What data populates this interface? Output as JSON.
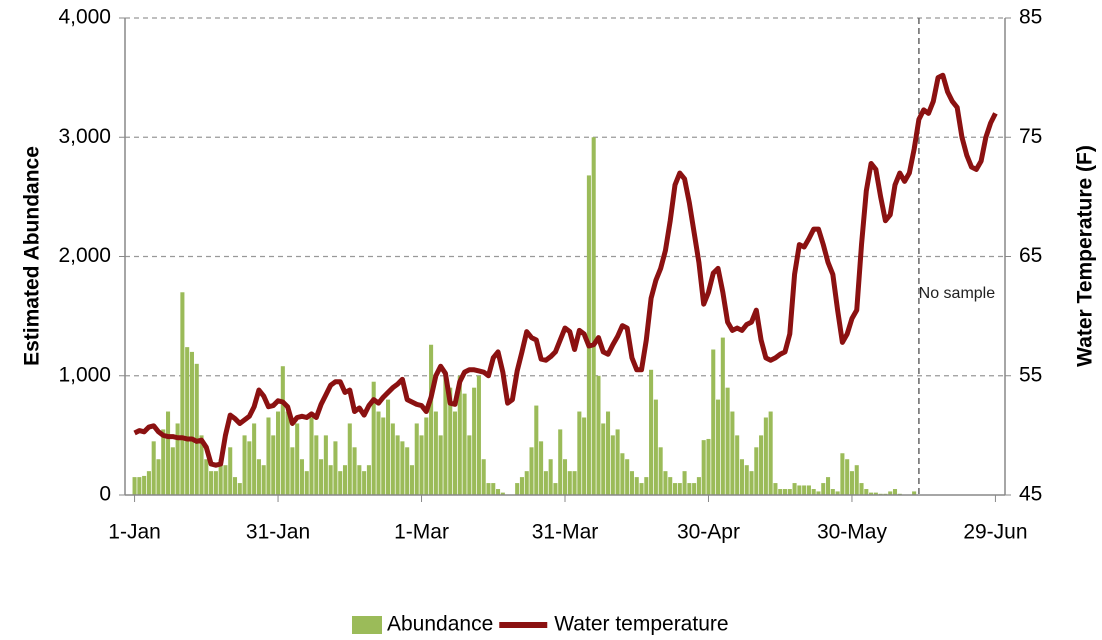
{
  "chart_data": {
    "type": "bar+line",
    "x": [
      0,
      1,
      2,
      3,
      4,
      5,
      6,
      7,
      8,
      9,
      10,
      11,
      12,
      13,
      14,
      15,
      16,
      17,
      18,
      19,
      20,
      21,
      22,
      23,
      24,
      25,
      26,
      27,
      28,
      29,
      30,
      31,
      32,
      33,
      34,
      35,
      36,
      37,
      38,
      39,
      40,
      41,
      42,
      43,
      44,
      45,
      46,
      47,
      48,
      49,
      50,
      51,
      52,
      53,
      54,
      55,
      56,
      57,
      58,
      59,
      60,
      61,
      62,
      63,
      64,
      65,
      66,
      67,
      68,
      69,
      70,
      71,
      72,
      73,
      74,
      75,
      76,
      77,
      78,
      79,
      80,
      81,
      82,
      83,
      84,
      85,
      86,
      87,
      88,
      89,
      90,
      91,
      92,
      93,
      94,
      95,
      96,
      97,
      98,
      99,
      100,
      101,
      102,
      103,
      104,
      105,
      106,
      107,
      108,
      109,
      110,
      111,
      112,
      113,
      114,
      115,
      116,
      117,
      118,
      119,
      120,
      121,
      122,
      123,
      124,
      125,
      126,
      127,
      128,
      129,
      130,
      131,
      132,
      133,
      134,
      135,
      136,
      137,
      138,
      139,
      140,
      141,
      142,
      143,
      144,
      145,
      146,
      147,
      148,
      149,
      150,
      151,
      152,
      153,
      154,
      155,
      156,
      157,
      158,
      159,
      160,
      161,
      162,
      163,
      164,
      165,
      166,
      167,
      168,
      169,
      170,
      171,
      172,
      173,
      174,
      175,
      176,
      177,
      178,
      179,
      180
    ],
    "xlim": [
      -2,
      182
    ],
    "xticks": [
      {
        "value": 0,
        "label": "1-Jan"
      },
      {
        "value": 30,
        "label": "31-Jan"
      },
      {
        "value": 60,
        "label": "1-Mar"
      },
      {
        "value": 90,
        "label": "31-Mar"
      },
      {
        "value": 120,
        "label": "30-Apr"
      },
      {
        "value": 150,
        "label": "30-May"
      },
      {
        "value": 180,
        "label": "29-Jun"
      }
    ],
    "ylabel": "Estimated Abundance",
    "ylim": [
      0,
      4000
    ],
    "yticks": [
      0,
      {
        "value": 1000,
        "label": "1,000"
      },
      {
        "value": 2000,
        "label": "2,000"
      },
      {
        "value": 3000,
        "label": "3,000"
      },
      {
        "value": 4000,
        "label": "4,000"
      }
    ],
    "y2label": "Water Temperature (F)",
    "y2lim": [
      45,
      85
    ],
    "y2ticks": [
      45,
      55,
      65,
      75,
      85
    ],
    "grid": true,
    "annotation": {
      "text": "No sample",
      "x": 164
    },
    "series": [
      {
        "name": "Abundance",
        "kind": "bar",
        "color": "#9bbb59",
        "values": [
          150,
          150,
          160,
          200,
          450,
          300,
          550,
          700,
          400,
          600,
          1700,
          1240,
          1200,
          1100,
          500,
          300,
          200,
          200,
          300,
          250,
          400,
          150,
          100,
          500,
          450,
          600,
          300,
          250,
          650,
          500,
          700,
          1080,
          700,
          400,
          600,
          300,
          200,
          650,
          500,
          300,
          500,
          250,
          450,
          200,
          250,
          600,
          400,
          250,
          200,
          250,
          950,
          700,
          650,
          800,
          600,
          500,
          450,
          400,
          250,
          600,
          500,
          650,
          1260,
          700,
          500,
          1000,
          900,
          700,
          1000,
          850,
          500,
          900,
          1000,
          300,
          100,
          100,
          50,
          20,
          0,
          0,
          100,
          150,
          200,
          400,
          750,
          450,
          200,
          300,
          100,
          550,
          300,
          200,
          200,
          700,
          650,
          2680,
          3000,
          1000,
          600,
          700,
          500,
          550,
          350,
          300,
          200,
          150,
          100,
          150,
          1050,
          800,
          400,
          200,
          150,
          100,
          100,
          200,
          100,
          100,
          150,
          460,
          470,
          1220,
          800,
          1320,
          900,
          700,
          500,
          300,
          250,
          200,
          400,
          500,
          650,
          700,
          100,
          50,
          50,
          50,
          100,
          80,
          80,
          80,
          50,
          30,
          100,
          150,
          50,
          30,
          350,
          300,
          200,
          250,
          100,
          50,
          20,
          20,
          10,
          10,
          30,
          50,
          10,
          0,
          0,
          30,
          0,
          null,
          null,
          null,
          null,
          null,
          null,
          null,
          null,
          null,
          null,
          null,
          null,
          null,
          null,
          null,
          null
        ]
      },
      {
        "name": "Water temperature",
        "kind": "line",
        "axis": "y2",
        "color": "#8b1111",
        "values": [
          50.2,
          50.4,
          50.3,
          50.7,
          50.8,
          50.3,
          50.0,
          49.9,
          49.9,
          49.8,
          49.8,
          49.7,
          49.7,
          49.5,
          49.6,
          49.0,
          47.6,
          47.5,
          47.6,
          50.0,
          51.7,
          51.4,
          51.0,
          51.3,
          51.6,
          52.4,
          53.8,
          53.3,
          52.4,
          52.5,
          52.9,
          52.8,
          52.4,
          51.0,
          51.5,
          51.6,
          51.5,
          51.8,
          51.5,
          52.6,
          53.4,
          54.2,
          54.5,
          54.5,
          53.6,
          53.8,
          52.0,
          52.3,
          51.7,
          52.5,
          53.0,
          52.7,
          53.2,
          53.6,
          54.0,
          54.3,
          54.7,
          53.0,
          52.8,
          52.6,
          52.5,
          52.0,
          53.2,
          55.0,
          55.8,
          55.2,
          52.7,
          52.6,
          54.5,
          55.3,
          55.5,
          55.5,
          55.4,
          55.3,
          55.0,
          56.5,
          57.0,
          55.3,
          52.7,
          53.0,
          55.4,
          57.0,
          58.7,
          58.2,
          58.0,
          56.4,
          56.3,
          56.6,
          57.0,
          58.0,
          59.0,
          58.7,
          57.2,
          58.8,
          58.5,
          57.5,
          57.6,
          58.2,
          57.0,
          56.8,
          57.6,
          58.3,
          59.2,
          59.0,
          56.5,
          55.5,
          55.5,
          58.0,
          61.5,
          63.0,
          64.0,
          65.5,
          68.0,
          71.0,
          72.0,
          71.5,
          69.5,
          67.0,
          64.5,
          61.0,
          62.0,
          63.6,
          64.0,
          62.0,
          59.5,
          58.8,
          59.0,
          58.8,
          59.3,
          59.5,
          60.5,
          58.0,
          56.5,
          56.3,
          56.5,
          56.8,
          57.0,
          58.5,
          63.5,
          66.0,
          65.8,
          66.5,
          67.3,
          67.3,
          66.0,
          64.5,
          63.5,
          60.5,
          57.8,
          58.5,
          59.8,
          60.5,
          66.0,
          70.5,
          72.8,
          72.3,
          70.0,
          68.0,
          68.5,
          71.0,
          72.0,
          71.3,
          72.0,
          74.0,
          76.5,
          77.3,
          77.0,
          78.0,
          80.0,
          80.2,
          78.8,
          78.0,
          77.5,
          75.0,
          73.5,
          72.5,
          72.3,
          73.0,
          75.0,
          76.2,
          77.0
        ]
      }
    ]
  }
}
